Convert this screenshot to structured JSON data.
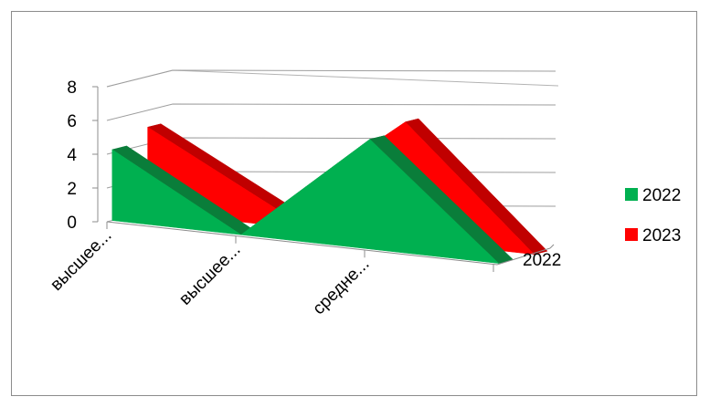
{
  "chart_data": {
    "type": "area",
    "style": "3d",
    "categories": [
      "высшее...",
      "высшее...",
      "средне...",
      ""
    ],
    "series": [
      {
        "name": "2022",
        "values": [
          4.2,
          0,
          6.5,
          0
        ],
        "color": "#00b050"
      },
      {
        "name": "2023",
        "values": [
          5,
          1,
          7,
          0
        ],
        "color": "#ff0000"
      }
    ],
    "depth_axis_label": "2022",
    "ylim": [
      0,
      8
    ],
    "yticks": [
      "0",
      "2",
      "4",
      "6",
      "8"
    ],
    "grid": true,
    "legend_position": "right"
  }
}
